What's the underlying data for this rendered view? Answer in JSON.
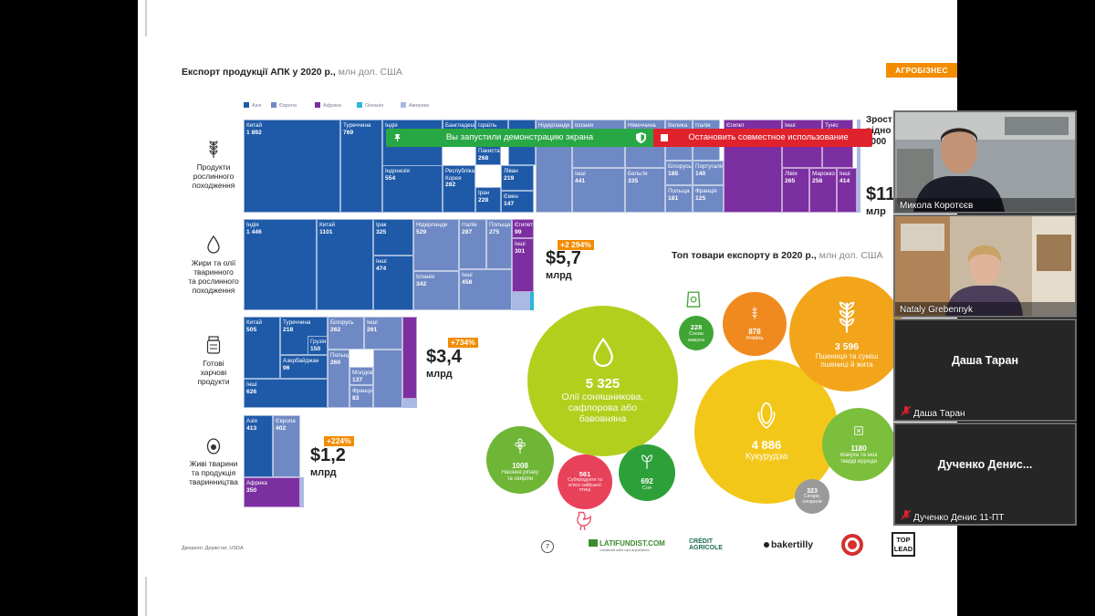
{
  "slide": {
    "title": "Експорт продукції АПК у 2020 р.,",
    "title_unit": "млн дол. США",
    "tag": "АГРОБІЗНЕС",
    "legend": [
      {
        "label": "Азія",
        "color": "#1f5aa8"
      },
      {
        "label": "Європа",
        "color": "#6f89c4"
      },
      {
        "label": "Африка",
        "color": "#7b2fa0"
      },
      {
        "label": "Океанія",
        "color": "#2ab7d8"
      },
      {
        "label": "Америка",
        "color": "#a9b9e3"
      }
    ],
    "categories": [
      {
        "label": "Продукти\nрослинного\nпоходження",
        "icon": "wheat-icon"
      },
      {
        "label": "Жири та олії\nтваринного\nта рослинного\nпоходження",
        "icon": "oil-drop-icon"
      },
      {
        "label": "Готові\nхарчові\nпродукти",
        "icon": "jar-icon"
      },
      {
        "label": "Живі тварини\nта продукція\nтваринництва",
        "icon": "egg-icon"
      }
    ],
    "row1_cells": [
      {
        "name": "Китай",
        "value": "1 892"
      },
      {
        "name": "Туреччина",
        "value": "769"
      },
      {
        "name": "Індія",
        "value": ""
      },
      {
        "name": "Бангладеш",
        "value": ""
      },
      {
        "name": "Ізраїль",
        "value": ""
      },
      {
        "name": "Нідерланди",
        "value": ""
      },
      {
        "name": "Іспанія",
        "value": ""
      },
      {
        "name": "Німеччина",
        "value": ""
      },
      {
        "name": "Велика",
        "value": ""
      },
      {
        "name": "Італія",
        "value": ""
      },
      {
        "name": "Єгипет",
        "value": ""
      },
      {
        "name": "Інші",
        "value": ""
      },
      {
        "name": "Туніс",
        "value": ""
      },
      {
        "name": "Пакистан",
        "value": "268"
      },
      {
        "name": "Ліван",
        "value": "219"
      },
      {
        "name": "Індонезія",
        "value": "554"
      },
      {
        "name": "Республіка Корея",
        "value": "282"
      },
      {
        "name": "Іран",
        "value": "228"
      },
      {
        "name": "Ємен",
        "value": "147"
      },
      {
        "name": "Інші",
        "value": "441"
      },
      {
        "name": "Бельгія",
        "value": "335"
      },
      {
        "name": "Білорусь",
        "value": "185"
      },
      {
        "name": "Португалія",
        "value": "140"
      },
      {
        "name": "Польща",
        "value": "181"
      },
      {
        "name": "Франція",
        "value": "125"
      },
      {
        "name": "Лівія",
        "value": "265"
      },
      {
        "name": "Марокко",
        "value": "258"
      },
      {
        "name": "Інші",
        "value": "414"
      }
    ],
    "row1_growth_partial": "Зрост",
    "row1_growth_sub": "відно",
    "row1_growth_year": "2000",
    "row1_total": "$11,",
    "row1_mlrd": "млр",
    "row2_cells": [
      {
        "name": "Індія",
        "value": "1 446"
      },
      {
        "name": "Китай",
        "value": "1101"
      },
      {
        "name": "Ірак",
        "value": "325"
      },
      {
        "name": "Інші",
        "value": "474"
      },
      {
        "name": "Нідерланди",
        "value": "529"
      },
      {
        "name": "Італія",
        "value": "287"
      },
      {
        "name": "Польща",
        "value": "275"
      },
      {
        "name": "Єгипет",
        "value": "99"
      },
      {
        "name": "Інші",
        "value": "301"
      },
      {
        "name": "Іспанія",
        "value": "342"
      },
      {
        "name": "Інші",
        "value": "458"
      }
    ],
    "row2_growth": "+2 294%",
    "row2_total": "$5,7",
    "row2_mlrd": "млрд",
    "row3_cells": [
      {
        "name": "Китай",
        "value": "505"
      },
      {
        "name": "Туреччина",
        "value": "218"
      },
      {
        "name": "Грузія",
        "value": "150"
      },
      {
        "name": "Азербайджан",
        "value": "96"
      },
      {
        "name": "Інші",
        "value": "626"
      },
      {
        "name": "Білорусь",
        "value": "262"
      },
      {
        "name": "Інші",
        "value": "261"
      },
      {
        "name": "Польща",
        "value": "260"
      },
      {
        "name": "Молдова",
        "value": "137"
      },
      {
        "name": "Франція",
        "value": "83"
      }
    ],
    "row3_growth": "+734%",
    "row3_total": "$3,4",
    "row3_mlrd": "млрд",
    "row4_cells": [
      {
        "name": "Азія",
        "value": "413"
      },
      {
        "name": "Європа",
        "value": "402"
      },
      {
        "name": "Африка",
        "value": "350"
      }
    ],
    "row4_growth": "+224%",
    "row4_total": "$1,2",
    "row4_mlrd": "млрд",
    "bubbles_title": "Топ товари експорту в 2020 р.,",
    "bubbles_unit": "млн дол. США",
    "bubbles": [
      {
        "value": "5 325",
        "label": "Олії соняшникова,\nсафлорова або\nбавовняна",
        "color": "#b3cf1e",
        "icon": "oil-drop-icon"
      },
      {
        "value": "4 886",
        "label": "Кукурудза",
        "color": "#f3c719",
        "icon": "corn-icon"
      },
      {
        "value": "3 596",
        "label": "Пшениця та суміш\nпшениці й жита",
        "color": "#f2a51a",
        "icon": "wheat-icon"
      },
      {
        "value": "878",
        "label": "Ячмінь",
        "color": "#f08a1f",
        "icon": "barley-icon"
      },
      {
        "value": "228",
        "label": "Соєва\nмакуха",
        "color": "#3fa535",
        "icon": "feed-bag-icon"
      },
      {
        "value": "1180",
        "label": "Макуха та інші\nтверді відходи",
        "color": "#7bbf3c",
        "icon": "cake-icon"
      },
      {
        "value": "1008",
        "label": "Насіння ріпаку\nта свиріпи",
        "color": "#6fb536",
        "icon": "rapeseed-icon"
      },
      {
        "value": "561",
        "label": "Субпродукти та\nм'ясо свійської\nптиці",
        "color": "#e8415a",
        "icon": "chicken-icon"
      },
      {
        "value": "692",
        "label": "Соя",
        "color": "#2ea03a",
        "icon": "sprout-icon"
      },
      {
        "value": "323",
        "label": "Сигари,\nсигарили",
        "color": "#9a9a9a",
        "icon": ""
      }
    ],
    "source": "Джерело: Держстат, USDA",
    "page_number": "7",
    "logos": [
      "LATIFUNDIST.COM",
      "CRÉDIT AGRICOLE",
      "bakertilly",
      "TOP LEAD"
    ],
    "latifundist_sub": "головний сайт про агробізнес"
  },
  "share_bar": {
    "notice": "Вы запустили демонстрацию экрана",
    "stop": "Остановить совместное использование"
  },
  "participants": [
    {
      "name": "Микола Коротєєв",
      "type": "video"
    },
    {
      "name": "Nataly Grebennyk",
      "type": "video"
    },
    {
      "name": "Даша Таран",
      "display": "Даша Таран",
      "type": "avatar",
      "muted": true
    },
    {
      "name": "Дученко Денис 11-ПТ",
      "display": "Дученко  Денис...",
      "type": "avatar",
      "muted": true
    }
  ]
}
